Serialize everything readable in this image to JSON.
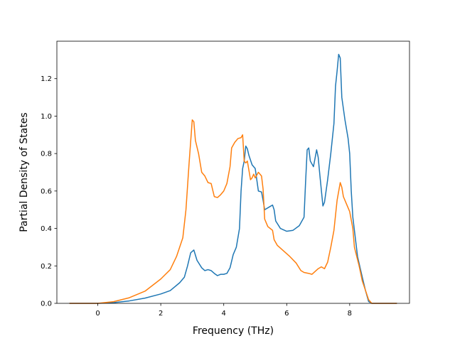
{
  "chart_data": {
    "type": "line",
    "title": "",
    "xlabel": "Frequency (THz)",
    "ylabel": "Partial Density of States",
    "xlim": [
      -1.3,
      9.9
    ],
    "ylim": [
      0.0,
      1.4
    ],
    "xticks": [
      0,
      2,
      4,
      6,
      8
    ],
    "xtick_labels": [
      "0",
      "2",
      "4",
      "6",
      "8"
    ],
    "yticks": [
      0.0,
      0.2,
      0.4,
      0.6,
      0.8,
      1.0,
      1.2
    ],
    "ytick_labels": [
      "0.0",
      "0.2",
      "0.4",
      "0.6",
      "0.8",
      "1.0",
      "1.2"
    ],
    "grid": false,
    "legend": false,
    "series": [
      {
        "color": "#1f77b4",
        "points": [
          [
            -0.9,
            0.0
          ],
          [
            0.0,
            0.0
          ],
          [
            0.5,
            0.004
          ],
          [
            1.0,
            0.013
          ],
          [
            1.5,
            0.028
          ],
          [
            2.0,
            0.05
          ],
          [
            2.3,
            0.068
          ],
          [
            2.6,
            0.11
          ],
          [
            2.75,
            0.14
          ],
          [
            2.85,
            0.2
          ],
          [
            2.95,
            0.27
          ],
          [
            3.05,
            0.285
          ],
          [
            3.15,
            0.23
          ],
          [
            3.3,
            0.19
          ],
          [
            3.4,
            0.175
          ],
          [
            3.5,
            0.18
          ],
          [
            3.6,
            0.175
          ],
          [
            3.7,
            0.16
          ],
          [
            3.8,
            0.148
          ],
          [
            3.9,
            0.155
          ],
          [
            4.0,
            0.155
          ],
          [
            4.1,
            0.16
          ],
          [
            4.2,
            0.19
          ],
          [
            4.3,
            0.26
          ],
          [
            4.4,
            0.3
          ],
          [
            4.5,
            0.4
          ],
          [
            4.55,
            0.6
          ],
          [
            4.6,
            0.72
          ],
          [
            4.65,
            0.76
          ],
          [
            4.7,
            0.84
          ],
          [
            4.75,
            0.825
          ],
          [
            4.8,
            0.79
          ],
          [
            4.9,
            0.74
          ],
          [
            5.0,
            0.72
          ],
          [
            5.1,
            0.6
          ],
          [
            5.2,
            0.595
          ],
          [
            5.25,
            0.55
          ],
          [
            5.3,
            0.5
          ],
          [
            5.4,
            0.51
          ],
          [
            5.5,
            0.52
          ],
          [
            5.55,
            0.525
          ],
          [
            5.6,
            0.5
          ],
          [
            5.65,
            0.44
          ],
          [
            5.8,
            0.4
          ],
          [
            6.0,
            0.385
          ],
          [
            6.2,
            0.39
          ],
          [
            6.4,
            0.415
          ],
          [
            6.55,
            0.46
          ],
          [
            6.6,
            0.65
          ],
          [
            6.65,
            0.82
          ],
          [
            6.7,
            0.83
          ],
          [
            6.75,
            0.76
          ],
          [
            6.85,
            0.73
          ],
          [
            6.95,
            0.82
          ],
          [
            7.0,
            0.78
          ],
          [
            7.05,
            0.69
          ],
          [
            7.15,
            0.52
          ],
          [
            7.2,
            0.54
          ],
          [
            7.3,
            0.66
          ],
          [
            7.4,
            0.8
          ],
          [
            7.5,
            0.96
          ],
          [
            7.55,
            1.16
          ],
          [
            7.6,
            1.24
          ],
          [
            7.65,
            1.33
          ],
          [
            7.7,
            1.31
          ],
          [
            7.75,
            1.1
          ],
          [
            7.85,
            0.98
          ],
          [
            7.95,
            0.88
          ],
          [
            8.0,
            0.8
          ],
          [
            8.05,
            0.6
          ],
          [
            8.1,
            0.46
          ],
          [
            8.25,
            0.25
          ],
          [
            8.4,
            0.14
          ],
          [
            8.5,
            0.07
          ],
          [
            8.6,
            0.01
          ],
          [
            8.7,
            0.0
          ],
          [
            9.5,
            0.0
          ]
        ]
      },
      {
        "color": "#ff7f0e",
        "points": [
          [
            -0.9,
            0.0
          ],
          [
            0.0,
            0.0
          ],
          [
            0.5,
            0.009
          ],
          [
            1.0,
            0.03
          ],
          [
            1.5,
            0.065
          ],
          [
            2.0,
            0.13
          ],
          [
            2.3,
            0.18
          ],
          [
            2.5,
            0.25
          ],
          [
            2.7,
            0.35
          ],
          [
            2.8,
            0.5
          ],
          [
            2.9,
            0.75
          ],
          [
            3.0,
            0.98
          ],
          [
            3.05,
            0.97
          ],
          [
            3.1,
            0.87
          ],
          [
            3.2,
            0.8
          ],
          [
            3.3,
            0.7
          ],
          [
            3.4,
            0.68
          ],
          [
            3.5,
            0.645
          ],
          [
            3.6,
            0.64
          ],
          [
            3.7,
            0.57
          ],
          [
            3.8,
            0.565
          ],
          [
            3.9,
            0.58
          ],
          [
            4.0,
            0.6
          ],
          [
            4.1,
            0.64
          ],
          [
            4.2,
            0.73
          ],
          [
            4.25,
            0.83
          ],
          [
            4.35,
            0.86
          ],
          [
            4.45,
            0.88
          ],
          [
            4.55,
            0.885
          ],
          [
            4.6,
            0.9
          ],
          [
            4.65,
            0.76
          ],
          [
            4.7,
            0.75
          ],
          [
            4.75,
            0.76
          ],
          [
            4.85,
            0.66
          ],
          [
            4.9,
            0.67
          ],
          [
            4.95,
            0.69
          ],
          [
            5.0,
            0.67
          ],
          [
            5.1,
            0.7
          ],
          [
            5.2,
            0.68
          ],
          [
            5.25,
            0.61
          ],
          [
            5.3,
            0.45
          ],
          [
            5.4,
            0.41
          ],
          [
            5.55,
            0.39
          ],
          [
            5.6,
            0.34
          ],
          [
            5.7,
            0.31
          ],
          [
            5.9,
            0.28
          ],
          [
            6.1,
            0.25
          ],
          [
            6.3,
            0.215
          ],
          [
            6.45,
            0.175
          ],
          [
            6.55,
            0.165
          ],
          [
            6.7,
            0.16
          ],
          [
            6.8,
            0.155
          ],
          [
            6.9,
            0.17
          ],
          [
            7.0,
            0.185
          ],
          [
            7.1,
            0.195
          ],
          [
            7.2,
            0.185
          ],
          [
            7.3,
            0.22
          ],
          [
            7.4,
            0.3
          ],
          [
            7.5,
            0.39
          ],
          [
            7.6,
            0.55
          ],
          [
            7.7,
            0.645
          ],
          [
            7.75,
            0.62
          ],
          [
            7.8,
            0.57
          ],
          [
            7.9,
            0.53
          ],
          [
            8.0,
            0.49
          ],
          [
            8.1,
            0.4
          ],
          [
            8.15,
            0.3
          ],
          [
            8.3,
            0.2
          ],
          [
            8.4,
            0.12
          ],
          [
            8.5,
            0.07
          ],
          [
            8.6,
            0.02
          ],
          [
            8.7,
            0.0
          ],
          [
            9.5,
            0.0
          ]
        ]
      }
    ]
  }
}
